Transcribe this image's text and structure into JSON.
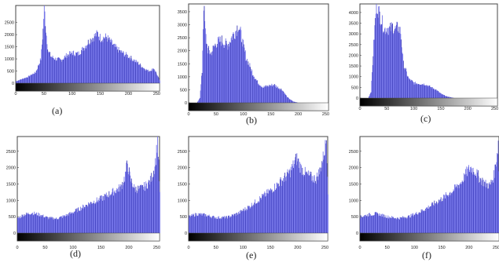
{
  "chart_data": [
    {
      "type": "bar",
      "caption": "(a)",
      "x_ticks": [
        0,
        50,
        100,
        150,
        200,
        250
      ],
      "y_ticks": [
        0,
        500,
        1000,
        1500,
        2000,
        2500
      ],
      "xlim": [
        0,
        255
      ],
      "ylim": [
        0,
        3200
      ],
      "curve": [
        [
          0,
          80
        ],
        [
          20,
          250
        ],
        [
          35,
          450
        ],
        [
          44,
          1000
        ],
        [
          48,
          2200
        ],
        [
          50,
          3200
        ],
        [
          53,
          2200
        ],
        [
          57,
          1300
        ],
        [
          62,
          1100
        ],
        [
          70,
          1000
        ],
        [
          80,
          950
        ],
        [
          90,
          1150
        ],
        [
          100,
          1250
        ],
        [
          110,
          1200
        ],
        [
          120,
          1450
        ],
        [
          130,
          1750
        ],
        [
          140,
          1950
        ],
        [
          145,
          2050
        ],
        [
          150,
          1850
        ],
        [
          160,
          1900
        ],
        [
          168,
          1700
        ],
        [
          175,
          1500
        ],
        [
          185,
          1300
        ],
        [
          200,
          1100
        ],
        [
          215,
          850
        ],
        [
          225,
          650
        ],
        [
          235,
          500
        ],
        [
          245,
          600
        ],
        [
          250,
          350
        ],
        [
          255,
          100
        ]
      ]
    },
    {
      "type": "bar",
      "caption": "(b)",
      "x_ticks": [
        0,
        50,
        100,
        150,
        200,
        250
      ],
      "y_ticks": [
        0,
        500,
        1000,
        1500,
        2000,
        2500,
        3000,
        3500
      ],
      "xlim": [
        0,
        255
      ],
      "ylim": [
        0,
        3800
      ],
      "curve": [
        [
          0,
          0
        ],
        [
          15,
          0
        ],
        [
          20,
          200
        ],
        [
          24,
          1200
        ],
        [
          27,
          3800
        ],
        [
          30,
          2700
        ],
        [
          34,
          2050
        ],
        [
          40,
          1900
        ],
        [
          50,
          2300
        ],
        [
          60,
          2400
        ],
        [
          70,
          2200
        ],
        [
          80,
          2600
        ],
        [
          85,
          2750
        ],
        [
          90,
          3000
        ],
        [
          95,
          2600
        ],
        [
          100,
          2100
        ],
        [
          105,
          1700
        ],
        [
          115,
          1200
        ],
        [
          125,
          800
        ],
        [
          135,
          600
        ],
        [
          145,
          650
        ],
        [
          155,
          700
        ],
        [
          160,
          620
        ],
        [
          170,
          500
        ],
        [
          180,
          200
        ],
        [
          190,
          50
        ],
        [
          200,
          0
        ],
        [
          255,
          0
        ]
      ]
    },
    {
      "type": "bar",
      "caption": "(c)",
      "x_ticks": [
        0,
        50,
        100,
        150,
        200,
        250
      ],
      "y_ticks": [
        0,
        500,
        1000,
        1500,
        2000,
        2500,
        3000,
        3500,
        4000
      ],
      "xlim": [
        0,
        255
      ],
      "ylim": [
        0,
        4400
      ],
      "curve": [
        [
          0,
          0
        ],
        [
          15,
          0
        ],
        [
          20,
          300
        ],
        [
          25,
          2500
        ],
        [
          30,
          4400
        ],
        [
          35,
          4000
        ],
        [
          40,
          3600
        ],
        [
          45,
          3200
        ],
        [
          50,
          3300
        ],
        [
          55,
          3200
        ],
        [
          60,
          3350
        ],
        [
          65,
          3200
        ],
        [
          70,
          3300
        ],
        [
          75,
          3100
        ],
        [
          80,
          1600
        ],
        [
          90,
          900
        ],
        [
          100,
          700
        ],
        [
          120,
          650
        ],
        [
          140,
          400
        ],
        [
          150,
          200
        ],
        [
          160,
          80
        ],
        [
          175,
          0
        ],
        [
          255,
          0
        ]
      ]
    },
    {
      "type": "bar",
      "caption": "(d)",
      "x_ticks": [
        0,
        50,
        100,
        150,
        200,
        250
      ],
      "y_ticks": [
        0,
        500,
        1000,
        1500,
        2000,
        2500
      ],
      "xlim": [
        0,
        255
      ],
      "ylim": [
        0,
        2950
      ],
      "curve": [
        [
          0,
          450
        ],
        [
          10,
          550
        ],
        [
          25,
          620
        ],
        [
          40,
          560
        ],
        [
          55,
          460
        ],
        [
          70,
          440
        ],
        [
          90,
          560
        ],
        [
          110,
          730
        ],
        [
          130,
          920
        ],
        [
          150,
          1050
        ],
        [
          170,
          1250
        ],
        [
          185,
          1400
        ],
        [
          192,
          1700
        ],
        [
          197,
          2150
        ],
        [
          202,
          1650
        ],
        [
          210,
          1350
        ],
        [
          220,
          1350
        ],
        [
          230,
          1450
        ],
        [
          238,
          1600
        ],
        [
          244,
          1900
        ],
        [
          248,
          2300
        ],
        [
          251,
          2900
        ],
        [
          255,
          1200
        ]
      ]
    },
    {
      "type": "bar",
      "caption": "(e)",
      "x_ticks": [
        0,
        50,
        100,
        150,
        200,
        250
      ],
      "y_ticks": [
        0,
        500,
        1000,
        1500,
        2000,
        2500
      ],
      "xlim": [
        0,
        255
      ],
      "ylim": [
        0,
        2950
      ],
      "curve": [
        [
          0,
          500
        ],
        [
          15,
          580
        ],
        [
          30,
          550
        ],
        [
          50,
          470
        ],
        [
          70,
          480
        ],
        [
          90,
          600
        ],
        [
          110,
          800
        ],
        [
          130,
          1050
        ],
        [
          150,
          1300
        ],
        [
          170,
          1600
        ],
        [
          185,
          1850
        ],
        [
          195,
          2200
        ],
        [
          198,
          2300
        ],
        [
          205,
          2000
        ],
        [
          215,
          1800
        ],
        [
          225,
          1700
        ],
        [
          233,
          1650
        ],
        [
          240,
          1900
        ],
        [
          246,
          2300
        ],
        [
          250,
          2650
        ],
        [
          252,
          2900
        ],
        [
          255,
          1300
        ]
      ]
    },
    {
      "type": "bar",
      "caption": "(f)",
      "x_ticks": [
        0,
        50,
        100,
        150,
        200,
        250
      ],
      "y_ticks": [
        0,
        500,
        1000,
        1500,
        2000,
        2500
      ],
      "xlim": [
        0,
        255
      ],
      "ylim": [
        0,
        2950
      ],
      "curve": [
        [
          0,
          500
        ],
        [
          15,
          560
        ],
        [
          30,
          590
        ],
        [
          50,
          500
        ],
        [
          70,
          450
        ],
        [
          90,
          510
        ],
        [
          110,
          650
        ],
        [
          130,
          840
        ],
        [
          150,
          1050
        ],
        [
          170,
          1300
        ],
        [
          185,
          1550
        ],
        [
          195,
          1850
        ],
        [
          202,
          2000
        ],
        [
          210,
          1900
        ],
        [
          220,
          1650
        ],
        [
          230,
          1500
        ],
        [
          238,
          1450
        ],
        [
          245,
          1750
        ],
        [
          250,
          2300
        ],
        [
          253,
          2750
        ],
        [
          255,
          1200
        ]
      ]
    }
  ]
}
